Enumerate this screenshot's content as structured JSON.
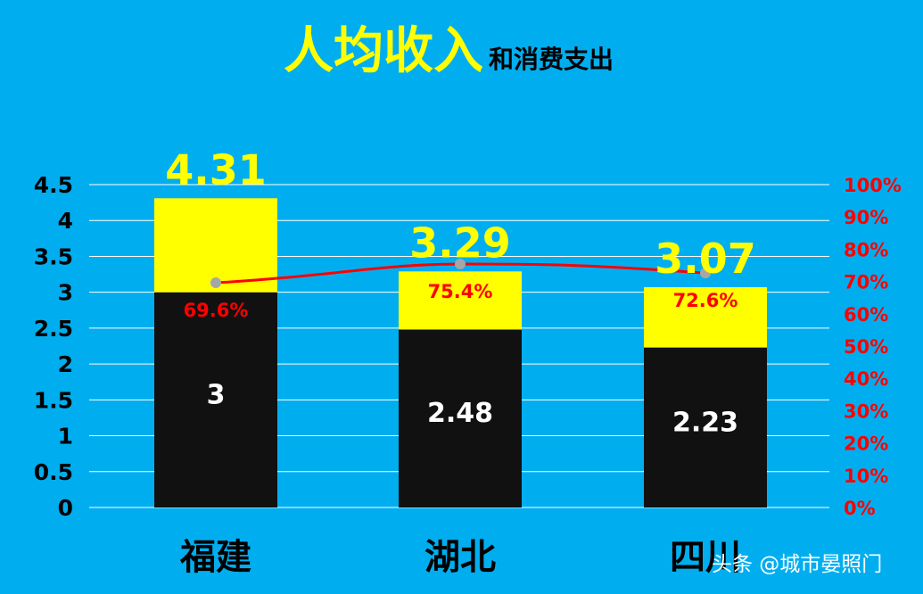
{
  "title": "人均收入",
  "subtitle": "和消费支出",
  "footer": "头条 @城市晏照门",
  "colors": {
    "background": "#00aeef",
    "income": "#ffff00",
    "consumption": "#111111",
    "ratio_line": "#ff0000",
    "ratio_marker": "#a6a6a6",
    "gridline": "#ffffff"
  },
  "chart_data": {
    "type": "bar",
    "stacked": true,
    "categories": [
      "福建",
      "湖北",
      "四川"
    ],
    "series": [
      {
        "values": [
          3,
          2.48,
          2.23
        ],
        "value_labels": [
          "3",
          "2.48",
          "2.23"
        ]
      },
      {
        "values": [
          1.31,
          0.81,
          0.84
        ]
      }
    ],
    "totals": [
      4.31,
      3.29,
      3.07
    ],
    "total_labels": [
      "4.31",
      "3.29",
      "3.07"
    ],
    "line": {
      "values": [
        69.6,
        75.4,
        72.6
      ],
      "labels": [
        "69.6%",
        "75.4%",
        "72.6%"
      ]
    },
    "ylim": [
      0,
      4.5
    ],
    "y_ticks": [
      "0",
      "0.5",
      "1",
      "1.5",
      "2",
      "2.5",
      "3",
      "3.5",
      "4",
      "4.5"
    ],
    "y2lim": [
      0,
      100
    ],
    "y2_ticks": [
      "0%",
      "10%",
      "20%",
      "30%",
      "40%",
      "50%",
      "60%",
      "70%",
      "80%",
      "90%",
      "100%"
    ],
    "grid": true
  }
}
